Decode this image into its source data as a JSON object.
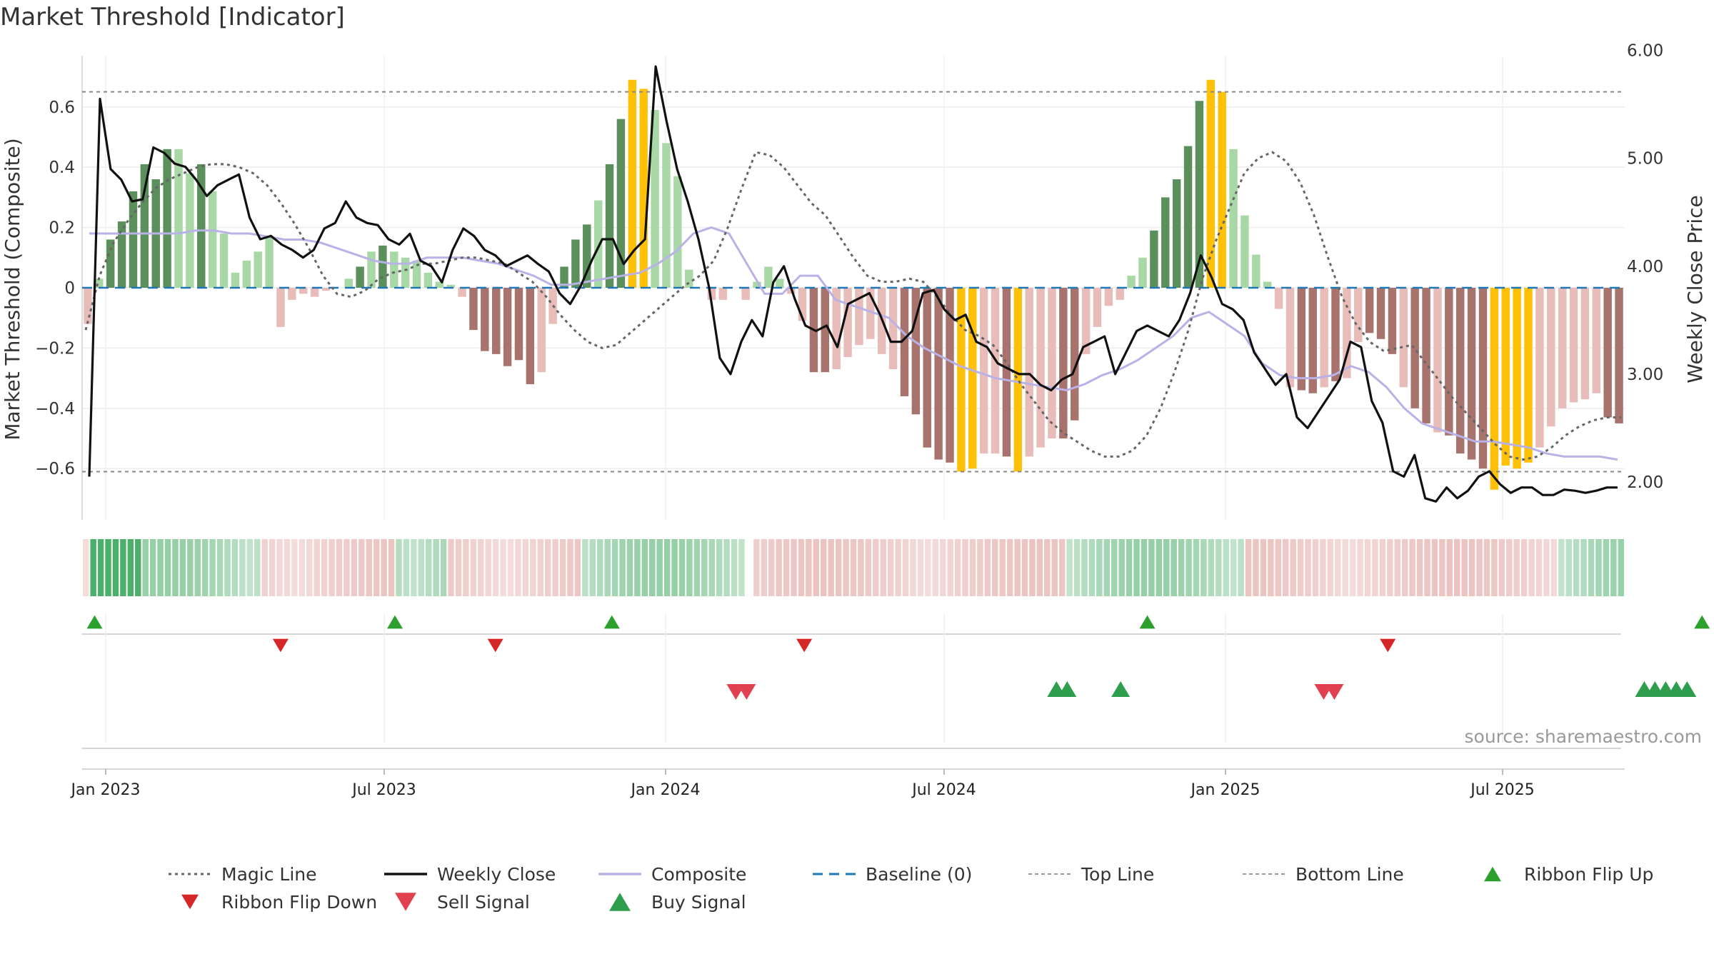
{
  "chart_data": {
    "type": "bar",
    "title": "Market Threshold [Indicator]",
    "ylabel": "Market Threshold (Composite)",
    "y2label": "Weekly Close Price",
    "ylim": [
      -0.77,
      0.77
    ],
    "y2lim": [
      1.65,
      5.95
    ],
    "yticks": [
      0.6,
      0.4,
      0.2,
      0,
      -0.2,
      -0.4,
      -0.6
    ],
    "ytick_labels": [
      "0.6",
      "0.4",
      "0.2",
      "0",
      "−0.2",
      "−0.4",
      "−0.6"
    ],
    "y2ticks": [
      6.0,
      5.0,
      4.0,
      3.0,
      2.0
    ],
    "y2tick_labels": [
      "6.00",
      "5.00",
      "4.00",
      "3.00",
      "2.00"
    ],
    "x_ticks": [
      "Jan 2023",
      "Jul 2023",
      "Jan 2024",
      "Jul 2024",
      "Jan 2025",
      "Jul 2025"
    ],
    "source": "source: sharemaestro.com",
    "top_line": 0.65,
    "bottom_line": -0.61,
    "composite": [
      -0.12,
      0.03,
      0.16,
      0.22,
      0.32,
      0.41,
      0.36,
      0.46,
      0.46,
      0.38,
      0.41,
      0.32,
      0.18,
      0.05,
      0.09,
      0.12,
      0.17,
      -0.13,
      -0.04,
      -0.02,
      -0.03,
      -0.01,
      0.0,
      0.03,
      0.07,
      0.12,
      0.14,
      0.12,
      0.1,
      0.09,
      0.05,
      0.02,
      0.01,
      -0.03,
      -0.14,
      -0.21,
      -0.22,
      -0.26,
      -0.24,
      -0.32,
      -0.28,
      -0.12,
      0.07,
      0.16,
      0.21,
      0.29,
      0.41,
      0.56,
      0.69,
      0.66,
      0.59,
      0.48,
      0.37,
      0.06,
      0.0,
      -0.04,
      -0.04,
      0.0,
      -0.04,
      0.02,
      0.07,
      0.03,
      -0.02,
      -0.11,
      -0.28,
      -0.28,
      -0.27,
      -0.23,
      -0.19,
      -0.17,
      -0.22,
      -0.27,
      -0.36,
      -0.42,
      -0.53,
      -0.57,
      -0.58,
      -0.61,
      -0.6,
      -0.55,
      -0.55,
      -0.56,
      -0.61,
      -0.56,
      -0.53,
      -0.5,
      -0.5,
      -0.44,
      -0.22,
      -0.13,
      -0.06,
      -0.04,
      0.04,
      0.1,
      0.19,
      0.3,
      0.36,
      0.47,
      0.62,
      0.69,
      0.65,
      0.46,
      0.24,
      0.11,
      0.02,
      -0.07,
      -0.33,
      -0.34,
      -0.35,
      -0.33,
      -0.31,
      -0.3,
      -0.18,
      -0.15,
      -0.17,
      -0.22,
      -0.33,
      -0.4,
      -0.45,
      -0.48,
      -0.49,
      -0.55,
      -0.57,
      -0.6,
      -0.67,
      -0.59,
      -0.6,
      -0.58,
      -0.53,
      -0.46,
      -0.4,
      -0.38,
      -0.37,
      -0.35,
      -0.43,
      -0.45
    ],
    "strength_labels": "value:tone:color pairs per composite bar; 1=strong dark, 0=light, 2=extreme yellow",
    "bar_tone": [
      0,
      0,
      1,
      1,
      1,
      1,
      1,
      1,
      0,
      0,
      1,
      0,
      0,
      0,
      0,
      0,
      0,
      0,
      0,
      0,
      0,
      0,
      1,
      0,
      1,
      0,
      1,
      0,
      0,
      0,
      0,
      0,
      0,
      0,
      1,
      1,
      1,
      1,
      1,
      1,
      0,
      0,
      1,
      1,
      1,
      0,
      1,
      1,
      2,
      2,
      0,
      0,
      0,
      0,
      0,
      0,
      0,
      0,
      0,
      0,
      0,
      0,
      0,
      0,
      1,
      1,
      0,
      0,
      0,
      0,
      0,
      0,
      1,
      1,
      1,
      1,
      1,
      2,
      2,
      0,
      0,
      1,
      2,
      0,
      0,
      0,
      1,
      1,
      0,
      0,
      0,
      0,
      0,
      0,
      1,
      1,
      1,
      1,
      1,
      2,
      2,
      0,
      0,
      0,
      0,
      0,
      0,
      1,
      1,
      0,
      1,
      0,
      0,
      1,
      1,
      1,
      0,
      1,
      1,
      0,
      1,
      1,
      1,
      1,
      2,
      2,
      2,
      2,
      0,
      0,
      0,
      0,
      0,
      0,
      1,
      1
    ],
    "weekly_close": [
      2.05,
      5.55,
      4.9,
      4.8,
      4.6,
      4.62,
      5.1,
      5.05,
      4.95,
      4.92,
      4.8,
      4.65,
      4.75,
      4.8,
      4.85,
      4.45,
      4.25,
      4.28,
      4.2,
      4.15,
      4.08,
      4.15,
      4.35,
      4.4,
      4.6,
      4.45,
      4.4,
      4.38,
      4.25,
      4.2,
      4.3,
      4.05,
      4.0,
      3.85,
      4.15,
      4.35,
      4.28,
      4.15,
      4.1,
      4.0,
      4.05,
      4.1,
      4.02,
      3.95,
      3.75,
      3.65,
      3.82,
      4.05,
      4.25,
      4.25,
      4.02,
      4.15,
      4.25,
      5.85,
      5.35,
      4.9,
      4.6,
      4.25,
      3.8,
      3.15,
      3.0,
      3.3,
      3.5,
      3.35,
      3.85,
      4.0,
      3.7,
      3.45,
      3.4,
      3.45,
      3.25,
      3.65,
      3.7,
      3.75,
      3.55,
      3.3,
      3.3,
      3.4,
      3.75,
      3.78,
      3.6,
      3.5,
      3.55,
      3.3,
      3.25,
      3.1,
      3.05,
      3.0,
      3.0,
      2.9,
      2.85,
      2.95,
      3.0,
      3.25,
      3.3,
      3.35,
      3.0,
      3.2,
      3.4,
      3.45,
      3.4,
      3.35,
      3.5,
      3.75,
      4.1,
      3.9,
      3.65,
      3.6,
      3.5,
      3.2,
      3.05,
      2.9,
      3.0,
      2.6,
      2.5,
      2.65,
      2.8,
      2.95,
      3.3,
      3.25,
      2.75,
      2.55,
      2.1,
      2.05,
      2.25,
      1.85,
      1.82,
      1.95,
      1.85,
      1.92,
      2.05,
      2.1,
      1.98,
      1.9,
      1.95,
      1.95,
      1.88,
      1.88,
      1.93,
      1.92,
      1.9,
      1.92,
      1.95,
      1.95
    ],
    "magic_line": [
      -0.14,
      0.04,
      0.15,
      0.22,
      0.28,
      0.33,
      0.36,
      0.38,
      0.4,
      0.41,
      0.41,
      0.4,
      0.38,
      0.34,
      0.28,
      0.21,
      0.13,
      0.04,
      -0.02,
      -0.03,
      -0.01,
      0.03,
      0.05,
      0.06,
      0.08,
      0.08,
      0.09,
      0.1,
      0.1,
      0.09,
      0.08,
      0.05,
      0.02,
      -0.03,
      -0.09,
      -0.14,
      -0.18,
      -0.2,
      -0.19,
      -0.15,
      -0.11,
      -0.07,
      -0.03,
      0.01,
      0.04,
      0.09,
      0.2,
      0.33,
      0.45,
      0.44,
      0.4,
      0.34,
      0.28,
      0.24,
      0.17,
      0.1,
      0.04,
      0.02,
      0.02,
      0.03,
      0.02,
      -0.03,
      -0.09,
      -0.14,
      -0.16,
      -0.19,
      -0.25,
      -0.32,
      -0.38,
      -0.44,
      -0.48,
      -0.51,
      -0.54,
      -0.56,
      -0.56,
      -0.54,
      -0.49,
      -0.4,
      -0.28,
      -0.14,
      0.03,
      0.16,
      0.27,
      0.38,
      0.43,
      0.45,
      0.42,
      0.35,
      0.24,
      0.1,
      -0.03,
      -0.12,
      -0.18,
      -0.21,
      -0.2,
      -0.19,
      -0.25,
      -0.31,
      -0.37,
      -0.42,
      -0.47,
      -0.52,
      -0.56,
      -0.57,
      -0.56,
      -0.53,
      -0.49,
      -0.46,
      -0.44,
      -0.43,
      -0.43
    ],
    "composite_line": [
      0.18,
      0.18,
      0.18,
      0.18,
      0.18,
      0.18,
      0.19,
      0.19,
      0.18,
      0.18,
      0.17,
      0.16,
      0.16,
      0.15,
      0.13,
      0.11,
      0.09,
      0.08,
      0.08,
      0.1,
      0.1,
      0.1,
      0.09,
      0.08,
      0.06,
      0.04,
      0.01,
      0.01,
      0.02,
      0.03,
      0.04,
      0.05,
      0.08,
      0.12,
      0.18,
      0.2,
      0.18,
      0.08,
      -0.02,
      -0.02,
      0.04,
      0.04,
      -0.04,
      -0.06,
      -0.08,
      -0.1,
      -0.16,
      -0.2,
      -0.23,
      -0.26,
      -0.28,
      -0.3,
      -0.31,
      -0.32,
      -0.33,
      -0.34,
      -0.32,
      -0.29,
      -0.27,
      -0.24,
      -0.2,
      -0.16,
      -0.1,
      -0.08,
      -0.12,
      -0.16,
      -0.25,
      -0.29,
      -0.3,
      -0.3,
      -0.29,
      -0.26,
      -0.28,
      -0.33,
      -0.4,
      -0.45,
      -0.47,
      -0.49,
      -0.51,
      -0.51,
      -0.52,
      -0.53,
      -0.55,
      -0.56,
      -0.56,
      -0.56,
      -0.57
    ],
    "ribbon": [
      0,
      2,
      2,
      2,
      2,
      2,
      2,
      2,
      1,
      1,
      1,
      1,
      1,
      1,
      1,
      1,
      1,
      1,
      1,
      1,
      1,
      1,
      1,
      1,
      -1,
      -1,
      -1,
      -1,
      -1,
      -1,
      -1,
      -1,
      -1,
      -1,
      -1,
      -1,
      -1,
      -1,
      -1,
      -1,
      -1,
      -1,
      1,
      1,
      1,
      1,
      1,
      1,
      1,
      -1,
      -1,
      -1,
      -1,
      -1,
      -1,
      -1,
      -1,
      -1,
      -1,
      -1,
      -1,
      -1,
      -1,
      -1,
      -1,
      -1,
      -1,
      1,
      1,
      1,
      1,
      1,
      1,
      1,
      1,
      1,
      1,
      1,
      1,
      1,
      1,
      1,
      1,
      1,
      1,
      1,
      1,
      1,
      1,
      9,
      -1,
      -1,
      -1,
      -1,
      -1,
      -1,
      -1,
      -1,
      -1,
      -1,
      -1,
      -1,
      -1,
      -1,
      -1,
      -1,
      -1,
      -1,
      -1,
      -1,
      -1,
      -1,
      -1,
      -1,
      -1,
      -1,
      -1,
      -1,
      -1,
      -1,
      -1,
      -1,
      -1,
      -1,
      -1,
      -1,
      -1,
      -1,
      -1,
      -1,
      -1,
      -1,
      1,
      1,
      1,
      1,
      1,
      1,
      1,
      1,
      1,
      1,
      1,
      1,
      1,
      1,
      1,
      1,
      1,
      1,
      1,
      1,
      1,
      1,
      1,
      1,
      -1,
      -1,
      -1,
      -1,
      -1,
      -1,
      -1,
      -1,
      -1,
      -1,
      -1,
      -1,
      -1,
      -1,
      -1,
      -1,
      -1,
      -1,
      -1,
      -1,
      -1,
      -1,
      -1,
      -1,
      -1,
      -1,
      -1,
      -1,
      -1,
      -1,
      -1,
      -1,
      -1,
      -1,
      -1,
      -1,
      -1,
      -1,
      -1,
      -1,
      -1,
      -1,
      1,
      1,
      1,
      1,
      1,
      1,
      1,
      1,
      1
    ],
    "ribbon_flip_up_weeks": [
      0.5,
      28.6,
      48.9,
      99.0,
      150.9
    ],
    "ribbon_flip_down_weeks": [
      17.9,
      38.0,
      66.9,
      121.5
    ],
    "sell_signal_weeks": [
      60.5,
      61.5,
      115.5,
      116.5
    ],
    "buy_signal_weeks": [
      90.5,
      91.5,
      96.5,
      145.5,
      146.5,
      147.5,
      148.5,
      149.5
    ],
    "legend": [
      {
        "label": "Magic Line",
        "style": "dotted",
        "color": "#666666"
      },
      {
        "label": "Weekly Close",
        "style": "solid",
        "color": "#111111"
      },
      {
        "label": "Composite",
        "style": "solid",
        "color": "#b9b2e6"
      },
      {
        "label": "Baseline (0)",
        "style": "dashed",
        "color": "#1f77b4"
      },
      {
        "label": "Top Line",
        "style": "dashed-thin",
        "color": "#999999"
      },
      {
        "label": "Bottom Line",
        "style": "dashed-thin",
        "color": "#999999"
      },
      {
        "label": "Ribbon Flip Up",
        "style": "tri-up",
        "color": "#2ca02c"
      },
      {
        "label": "Ribbon Flip Down",
        "style": "tri-down",
        "color": "#d62728"
      },
      {
        "label": "Sell Signal",
        "style": "tri-down-big",
        "color": "#e04050"
      },
      {
        "label": "Buy Signal",
        "style": "tri-up-big",
        "color": "#2e9e4e"
      }
    ],
    "colors": {
      "strong_pos": "#5b8f5b",
      "weak_pos": "#a8d8a5",
      "strong_neg": "#a8736d",
      "weak_neg": "#e8bcb8",
      "extreme": "#ffc107",
      "ribbon_pos": "#4caf6a",
      "ribbon_neg": "#dd9d98"
    }
  }
}
